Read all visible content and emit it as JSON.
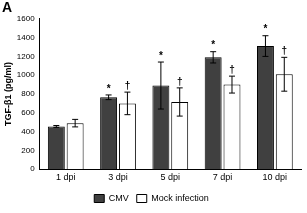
{
  "chart_data": {
    "type": "bar",
    "title": "A",
    "y_label": "TGF-β1 (pg/ml)",
    "categories": [
      "1 dpi",
      "3 dpi",
      "5 dpi",
      "7 dpi",
      "10 dpi"
    ],
    "series": [
      {
        "name": "CMV",
        "color": "#404040",
        "values": [
          455,
          765,
          890,
          1190,
          1310
        ],
        "errors": [
          10,
          25,
          250,
          60,
          110
        ],
        "annotations": [
          null,
          "*",
          "*",
          "*",
          "*"
        ]
      },
      {
        "name": "Mock infection",
        "color": "#ffffff",
        "values": [
          490,
          700,
          715,
          900,
          1010
        ],
        "errors": [
          40,
          120,
          150,
          90,
          180
        ],
        "annotations": [
          null,
          "†",
          "†",
          "†",
          "†"
        ]
      }
    ],
    "ylim": [
      0,
      1600
    ],
    "yticks": [
      0,
      200,
      400,
      600,
      800,
      1000,
      1200,
      1400,
      1600
    ],
    "grid": false,
    "legend": "bottom"
  }
}
